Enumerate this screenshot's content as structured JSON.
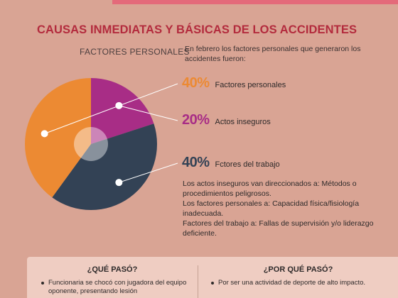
{
  "header": {
    "title": "CAUSAS INMEDIATAS Y BÁSICAS DE LOS ACCIDENTES",
    "subtitle": "FACTORES PERSONALES",
    "intro": "En febrero los factores personales que generaron los accidentes fueron:"
  },
  "chart_data": {
    "type": "pie",
    "title": "",
    "categories": [
      "Factores personales",
      "Actos inseguros",
      "Fctores del trabajo"
    ],
    "values": [
      40,
      20,
      40
    ],
    "value_labels": [
      "40%",
      "20%",
      "40%"
    ],
    "colors": [
      "#ec8a33",
      "#a82d86",
      "#334255"
    ],
    "legend": "right"
  },
  "notes": [
    "Los actos inseguros van direccionados a: Métodos o procedimientos peligrosos.",
    "Los factores personales a: Capacidad física/fisiología inadecuada.",
    "Factores del trabajo a: Fallas de supervisión y/o liderazgo deficiente."
  ],
  "panel": {
    "left_heading": "¿QUÉ PASÓ?",
    "left_item": "Funcionaria se chocó con jugadora del equipo oponente, presentando lesión",
    "right_heading": "¿POR QUÉ PASÓ?",
    "right_item": "Por ser una actividad de deporte de alto impacto."
  },
  "colors": {
    "background": "#d9a494",
    "title": "#b32b3d",
    "accent_band": "#e46a7a",
    "panel": "#efcdc2"
  }
}
